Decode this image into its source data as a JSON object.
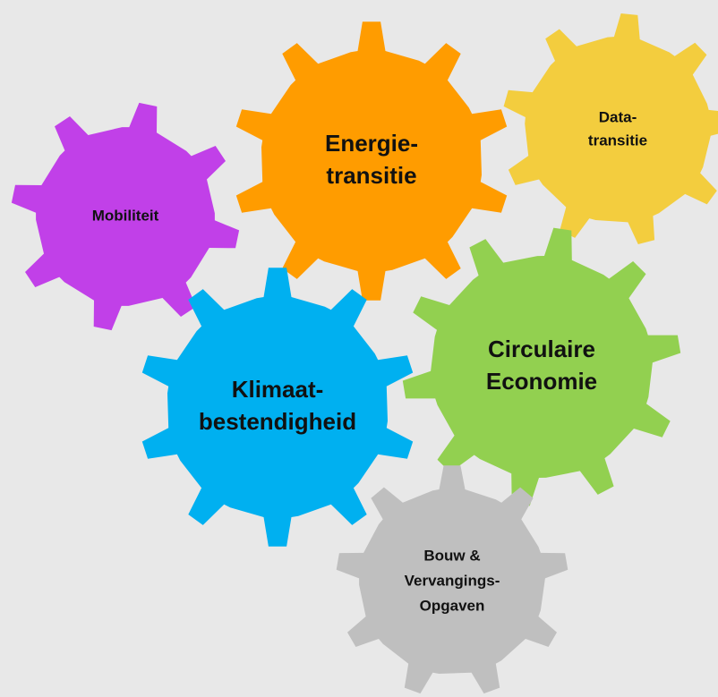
{
  "nodes": [
    {
      "lines": [
        "Mobiliteit"
      ]
    },
    {
      "lines": [
        "Data-",
        "transitie"
      ]
    },
    {
      "lines": [
        "Energie-",
        "transitie"
      ]
    },
    {
      "lines": [
        "Circulaire",
        "Economie"
      ]
    },
    {
      "lines": [
        "Klimaat-",
        "bestendigheid"
      ]
    },
    {
      "lines": [
        "Bouw &",
        "Vervangings-",
        "Opgaven"
      ]
    }
  ]
}
